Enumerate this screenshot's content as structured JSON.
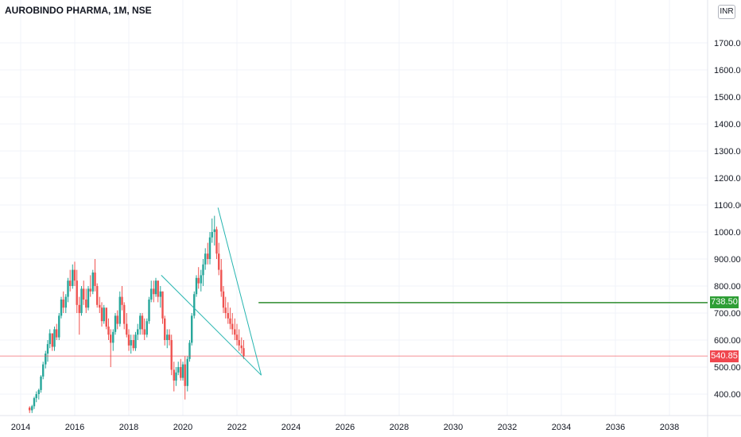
{
  "header": {
    "symbol": "AUROBINDO PHARMA",
    "interval": "1M",
    "exchange": "NSE",
    "currency": "INR"
  },
  "colors": {
    "up": "#26a69a",
    "down": "#ef5350",
    "trendline": "#26b5b0",
    "level": "#2e8b2e",
    "last": "#f0474f",
    "grid": "#f0f3fa"
  },
  "chart_data": {
    "type": "candlestick",
    "x_ticks": [
      "2014",
      "2016",
      "2018",
      "2020",
      "2022",
      "2024",
      "2026",
      "2028",
      "2030",
      "2032",
      "2034",
      "2036",
      "2038"
    ],
    "y_ticks": [
      "400.00",
      "500.00",
      "600.00",
      "700.00",
      "800.00",
      "900.00",
      "1000.00",
      "1100.00",
      "1200.00",
      "1300.00",
      "1400.00",
      "1500.00",
      "1600.00",
      "1700.00"
    ],
    "ylim": [
      350,
      1800
    ],
    "xlim": [
      2014.0,
      2039.5
    ],
    "horizontal_level": {
      "value": 738.5,
      "label": "738.50",
      "x_start": 2022.8
    },
    "last_price": {
      "value": 540.85,
      "label": "540.85"
    },
    "trendlines": [
      {
        "x1": 2021.3,
        "y1": 1090,
        "x2": 2022.9,
        "y2": 470
      },
      {
        "x1": 2019.2,
        "y1": 840,
        "x2": 2022.9,
        "y2": 470
      }
    ],
    "candles": [
      [
        2014.33,
        350,
        355,
        330,
        340
      ],
      [
        2014.42,
        340,
        360,
        330,
        355
      ],
      [
        2014.5,
        355,
        390,
        345,
        385
      ],
      [
        2014.58,
        385,
        410,
        370,
        400
      ],
      [
        2014.67,
        400,
        420,
        380,
        415
      ],
      [
        2014.75,
        415,
        470,
        405,
        465
      ],
      [
        2014.83,
        465,
        520,
        455,
        510
      ],
      [
        2014.92,
        510,
        560,
        495,
        550
      ],
      [
        2015.0,
        550,
        600,
        520,
        585
      ],
      [
        2015.08,
        585,
        640,
        570,
        625
      ],
      [
        2015.17,
        625,
        615,
        560,
        575
      ],
      [
        2015.25,
        575,
        650,
        560,
        640
      ],
      [
        2015.33,
        640,
        660,
        600,
        610
      ],
      [
        2015.42,
        610,
        700,
        600,
        690
      ],
      [
        2015.5,
        690,
        760,
        680,
        750
      ],
      [
        2015.58,
        750,
        780,
        700,
        720
      ],
      [
        2015.67,
        720,
        770,
        700,
        760
      ],
      [
        2015.75,
        760,
        830,
        740,
        820
      ],
      [
        2015.83,
        820,
        860,
        780,
        800
      ],
      [
        2015.92,
        800,
        880,
        790,
        860
      ],
      [
        2016.0,
        860,
        890,
        800,
        820
      ],
      [
        2016.08,
        820,
        860,
        700,
        730
      ],
      [
        2016.17,
        730,
        760,
        620,
        700
      ],
      [
        2016.25,
        700,
        800,
        690,
        790
      ],
      [
        2016.33,
        790,
        820,
        730,
        750
      ],
      [
        2016.42,
        750,
        790,
        700,
        720
      ],
      [
        2016.5,
        720,
        800,
        710,
        790
      ],
      [
        2016.58,
        790,
        840,
        760,
        780
      ],
      [
        2016.67,
        780,
        860,
        770,
        850
      ],
      [
        2016.75,
        850,
        900,
        780,
        800
      ],
      [
        2016.83,
        800,
        810,
        720,
        730
      ],
      [
        2016.92,
        730,
        760,
        700,
        720
      ],
      [
        2017.0,
        720,
        740,
        650,
        670
      ],
      [
        2017.08,
        670,
        730,
        660,
        720
      ],
      [
        2017.17,
        720,
        710,
        640,
        650
      ],
      [
        2017.25,
        650,
        680,
        600,
        620
      ],
      [
        2017.33,
        620,
        640,
        500,
        590
      ],
      [
        2017.42,
        590,
        640,
        560,
        630
      ],
      [
        2017.5,
        630,
        700,
        620,
        690
      ],
      [
        2017.58,
        690,
        710,
        640,
        660
      ],
      [
        2017.67,
        660,
        780,
        650,
        760
      ],
      [
        2017.75,
        760,
        800,
        710,
        730
      ],
      [
        2017.83,
        730,
        740,
        640,
        660
      ],
      [
        2017.92,
        660,
        700,
        610,
        620
      ],
      [
        2018.0,
        620,
        640,
        560,
        580
      ],
      [
        2018.08,
        580,
        620,
        550,
        600
      ],
      [
        2018.17,
        600,
        620,
        560,
        570
      ],
      [
        2018.25,
        570,
        630,
        560,
        620
      ],
      [
        2018.33,
        620,
        660,
        600,
        640
      ],
      [
        2018.42,
        640,
        700,
        620,
        690
      ],
      [
        2018.5,
        690,
        700,
        620,
        640
      ],
      [
        2018.58,
        640,
        680,
        600,
        620
      ],
      [
        2018.67,
        620,
        680,
        610,
        670
      ],
      [
        2018.75,
        670,
        760,
        660,
        750
      ],
      [
        2018.83,
        750,
        820,
        740,
        790
      ],
      [
        2018.92,
        790,
        820,
        740,
        770
      ],
      [
        2019.0,
        770,
        830,
        760,
        820
      ],
      [
        2019.08,
        820,
        820,
        740,
        760
      ],
      [
        2019.17,
        760,
        800,
        720,
        780
      ],
      [
        2019.25,
        780,
        780,
        660,
        680
      ],
      [
        2019.33,
        680,
        690,
        580,
        600
      ],
      [
        2019.42,
        600,
        640,
        570,
        620
      ],
      [
        2019.5,
        620,
        640,
        580,
        600
      ],
      [
        2019.58,
        600,
        620,
        470,
        490
      ],
      [
        2019.67,
        490,
        520,
        410,
        450
      ],
      [
        2019.75,
        450,
        500,
        430,
        480
      ],
      [
        2019.83,
        480,
        520,
        470,
        500
      ],
      [
        2019.92,
        500,
        530,
        450,
        460
      ],
      [
        2020.0,
        460,
        520,
        450,
        510
      ],
      [
        2020.08,
        510,
        540,
        380,
        430
      ],
      [
        2020.17,
        430,
        540,
        410,
        530
      ],
      [
        2020.25,
        530,
        600,
        520,
        590
      ],
      [
        2020.33,
        590,
        700,
        580,
        690
      ],
      [
        2020.42,
        690,
        780,
        680,
        770
      ],
      [
        2020.5,
        770,
        840,
        760,
        830
      ],
      [
        2020.58,
        830,
        870,
        790,
        810
      ],
      [
        2020.67,
        810,
        860,
        780,
        840
      ],
      [
        2020.75,
        840,
        900,
        800,
        880
      ],
      [
        2020.83,
        880,
        940,
        860,
        920
      ],
      [
        2020.92,
        920,
        960,
        880,
        900
      ],
      [
        2021.0,
        900,
        1000,
        880,
        980
      ],
      [
        2021.08,
        980,
        1050,
        960,
        1000
      ],
      [
        2021.17,
        1000,
        1060,
        950,
        1010
      ],
      [
        2021.25,
        1010,
        1020,
        900,
        920
      ],
      [
        2021.33,
        920,
        960,
        840,
        860
      ],
      [
        2021.42,
        860,
        900,
        760,
        780
      ],
      [
        2021.5,
        780,
        800,
        700,
        720
      ],
      [
        2021.58,
        720,
        760,
        680,
        700
      ],
      [
        2021.67,
        700,
        740,
        660,
        680
      ],
      [
        2021.75,
        680,
        720,
        640,
        660
      ],
      [
        2021.83,
        660,
        700,
        620,
        640
      ],
      [
        2021.92,
        640,
        680,
        600,
        620
      ],
      [
        2022.0,
        620,
        660,
        580,
        600
      ],
      [
        2022.08,
        600,
        640,
        560,
        580
      ],
      [
        2022.17,
        580,
        610,
        550,
        570
      ],
      [
        2022.25,
        570,
        600,
        530,
        541
      ]
    ]
  }
}
